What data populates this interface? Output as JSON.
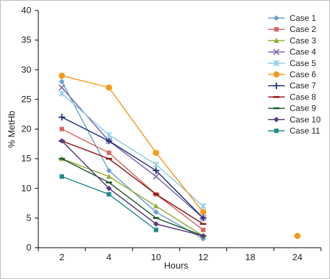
{
  "chart_data": {
    "type": "line",
    "xlabel": "Hours",
    "ylabel": "% MetHb",
    "categories": [
      "2",
      "4",
      "10",
      "12",
      "18",
      "24"
    ],
    "ylim": [
      0,
      40
    ],
    "yticks": [
      "0",
      "5",
      "10",
      "15",
      "20",
      "25",
      "30",
      "35",
      "40"
    ],
    "grid": false,
    "legend_position": "top-right",
    "series": [
      {
        "name": "Case 1",
        "color": "#6a9fce",
        "marker": "diamond",
        "values": [
          28,
          13,
          6,
          1.5,
          null,
          2
        ]
      },
      {
        "name": "Case 2",
        "color": "#d9665e",
        "marker": "square",
        "values": [
          20,
          16,
          9,
          3,
          null,
          null
        ]
      },
      {
        "name": "Case 3",
        "color": "#8fae3a",
        "marker": "triangle",
        "values": [
          15,
          12,
          7,
          2,
          null,
          null
        ]
      },
      {
        "name": "Case 4",
        "color": "#7b61a8",
        "marker": "x",
        "values": [
          27,
          18,
          12,
          5,
          null,
          null
        ]
      },
      {
        "name": "Case 5",
        "color": "#8ccbe8",
        "marker": "star",
        "values": [
          26,
          19,
          14,
          7,
          null,
          null
        ]
      },
      {
        "name": "Case 6",
        "color": "#f59b1c",
        "marker": "circle",
        "values": [
          29,
          27,
          16,
          6,
          null,
          2
        ]
      },
      {
        "name": "Case 7",
        "color": "#1c2f7a",
        "marker": "plus",
        "values": [
          22,
          18,
          13,
          5,
          null,
          null
        ]
      },
      {
        "name": "Case 8",
        "color": "#8b1a1a",
        "marker": "dash",
        "values": [
          18,
          15,
          9,
          4,
          null,
          null
        ]
      },
      {
        "name": "Case 9",
        "color": "#1f5c2a",
        "marker": "dash",
        "values": [
          15,
          11,
          5,
          2,
          null,
          null
        ]
      },
      {
        "name": "Case 10",
        "color": "#5a3a7a",
        "marker": "diamond",
        "values": [
          18,
          10,
          4,
          2,
          null,
          null
        ]
      },
      {
        "name": "Case 11",
        "color": "#1e8a8a",
        "marker": "square",
        "values": [
          12,
          9,
          3,
          null,
          null,
          null
        ]
      }
    ]
  }
}
